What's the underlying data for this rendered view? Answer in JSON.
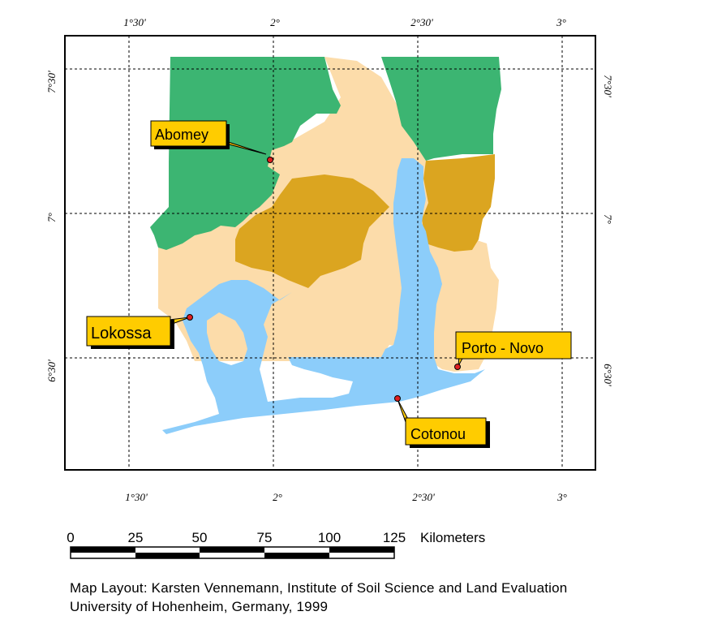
{
  "colors": {
    "green": "#3cb572",
    "wheat": "#fcdcaa",
    "ochre": "#dba520",
    "lightblue": "#8ccdfa",
    "label_bg": "#ffcc00",
    "city_dot": "#e02020"
  },
  "graticule": {
    "lon_labels": [
      "1°30'",
      "2°",
      "2°30'",
      "3°"
    ],
    "lat_labels": [
      "7°30'",
      "7°",
      "6°30'"
    ]
  },
  "cities": [
    {
      "id": "abomey",
      "name": "Abomey"
    },
    {
      "id": "lokossa",
      "name": "Lokossa"
    },
    {
      "id": "porto-novo",
      "name": "Porto - Novo"
    },
    {
      "id": "cotonou",
      "name": "Cotonou"
    }
  ],
  "scale_bar": {
    "ticks": [
      "0",
      "25",
      "50",
      "75",
      "100",
      "125"
    ],
    "unit": "Kilometers"
  },
  "credits": {
    "line1": "Map Layout: Karsten Vennemann, Institute of Soil Science and Land Evaluation",
    "line2": "University of Hohenheim, Germany, 1999"
  }
}
